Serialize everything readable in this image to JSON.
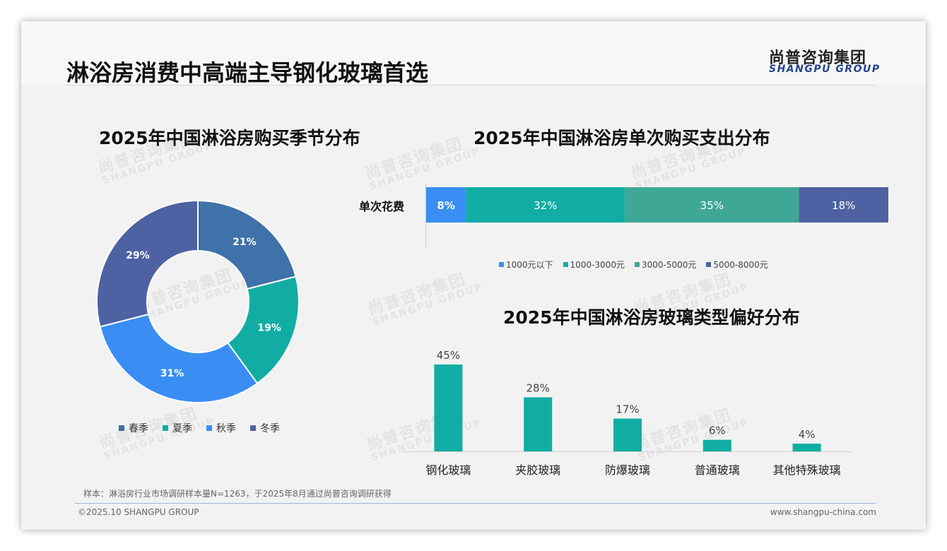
{
  "header": {
    "title": "淋浴房消费中高端主导钢化玻璃首选",
    "logo_cn": "尚普咨询集团",
    "logo_en": "SHANGPU GROUP"
  },
  "watermark": {
    "cn": "尚普咨询集团",
    "en": "SHANGPU GROUP"
  },
  "chart_data": [
    {
      "type": "pie",
      "title": "2025年中国淋浴房购买季节分布",
      "categories": [
        "春季",
        "夏季",
        "秋季",
        "冬季"
      ],
      "values": [
        21,
        19,
        31,
        29
      ],
      "labels": [
        "21%",
        "19%",
        "31%",
        "29%"
      ],
      "colors": [
        "#3f72a8",
        "#11ada4",
        "#3a8ef3",
        "#4e62a3"
      ],
      "donut": true,
      "legend": "bottom"
    },
    {
      "type": "bar",
      "stacked": true,
      "horizontal": true,
      "title": "2025年中国淋浴房单次购买支出分布",
      "categories": [
        "单次花费"
      ],
      "series": [
        {
          "name": "1000元以下",
          "values": [
            8
          ],
          "label": "8%",
          "color": "#3a8ef3"
        },
        {
          "name": "1000-3000元",
          "values": [
            32
          ],
          "label": "32%",
          "color": "#11ada4"
        },
        {
          "name": "3000-5000元",
          "values": [
            35
          ],
          "label": "35%",
          "color": "#3fa796"
        },
        {
          "name": "5000-8000元",
          "values": [
            18
          ],
          "label": "18%",
          "color": "#4e62a3"
        }
      ],
      "xlim": [
        0,
        93
      ],
      "legend": "bottom"
    },
    {
      "type": "bar",
      "title": "2025年中国淋浴房玻璃类型偏好分布",
      "categories": [
        "钢化玻璃",
        "夹胶玻璃",
        "防爆玻璃",
        "普通玻璃",
        "其他特殊玻璃"
      ],
      "values": [
        45,
        28,
        17,
        6,
        4
      ],
      "labels": [
        "45%",
        "28%",
        "17%",
        "6%",
        "4%"
      ],
      "color": "#11ada4",
      "ylim": [
        0,
        45
      ]
    }
  ],
  "footer": {
    "note": "样本：淋浴房行业市场调研样本量N=1263，于2025年8月通过尚普咨询调研获得",
    "copyright": "©2025.10 SHANGPU GROUP",
    "website": "www.shangpu-china.com"
  }
}
